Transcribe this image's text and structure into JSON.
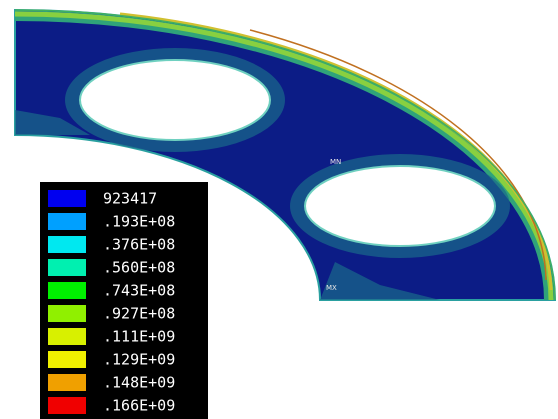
{
  "legend": {
    "entries": [
      {
        "label": "923417",
        "color": "#0000f0"
      },
      {
        "label": ".193E+08",
        "color": "#00a0ff"
      },
      {
        "label": ".376E+08",
        "color": "#00e8f0"
      },
      {
        "label": ".560E+08",
        "color": "#00f0b0"
      },
      {
        "label": ".743E+08",
        "color": "#00f000"
      },
      {
        "label": ".927E+08",
        "color": "#90f000"
      },
      {
        "label": ".111E+09",
        "color": "#d8f000"
      },
      {
        "label": ".129E+09",
        "color": "#f0f000"
      },
      {
        "label": ".148E+09",
        "color": "#f0a000"
      },
      {
        "label": ".166E+09",
        "color": "#f00000"
      }
    ]
  },
  "annotations": {
    "min": "MN",
    "max": "MX"
  }
}
